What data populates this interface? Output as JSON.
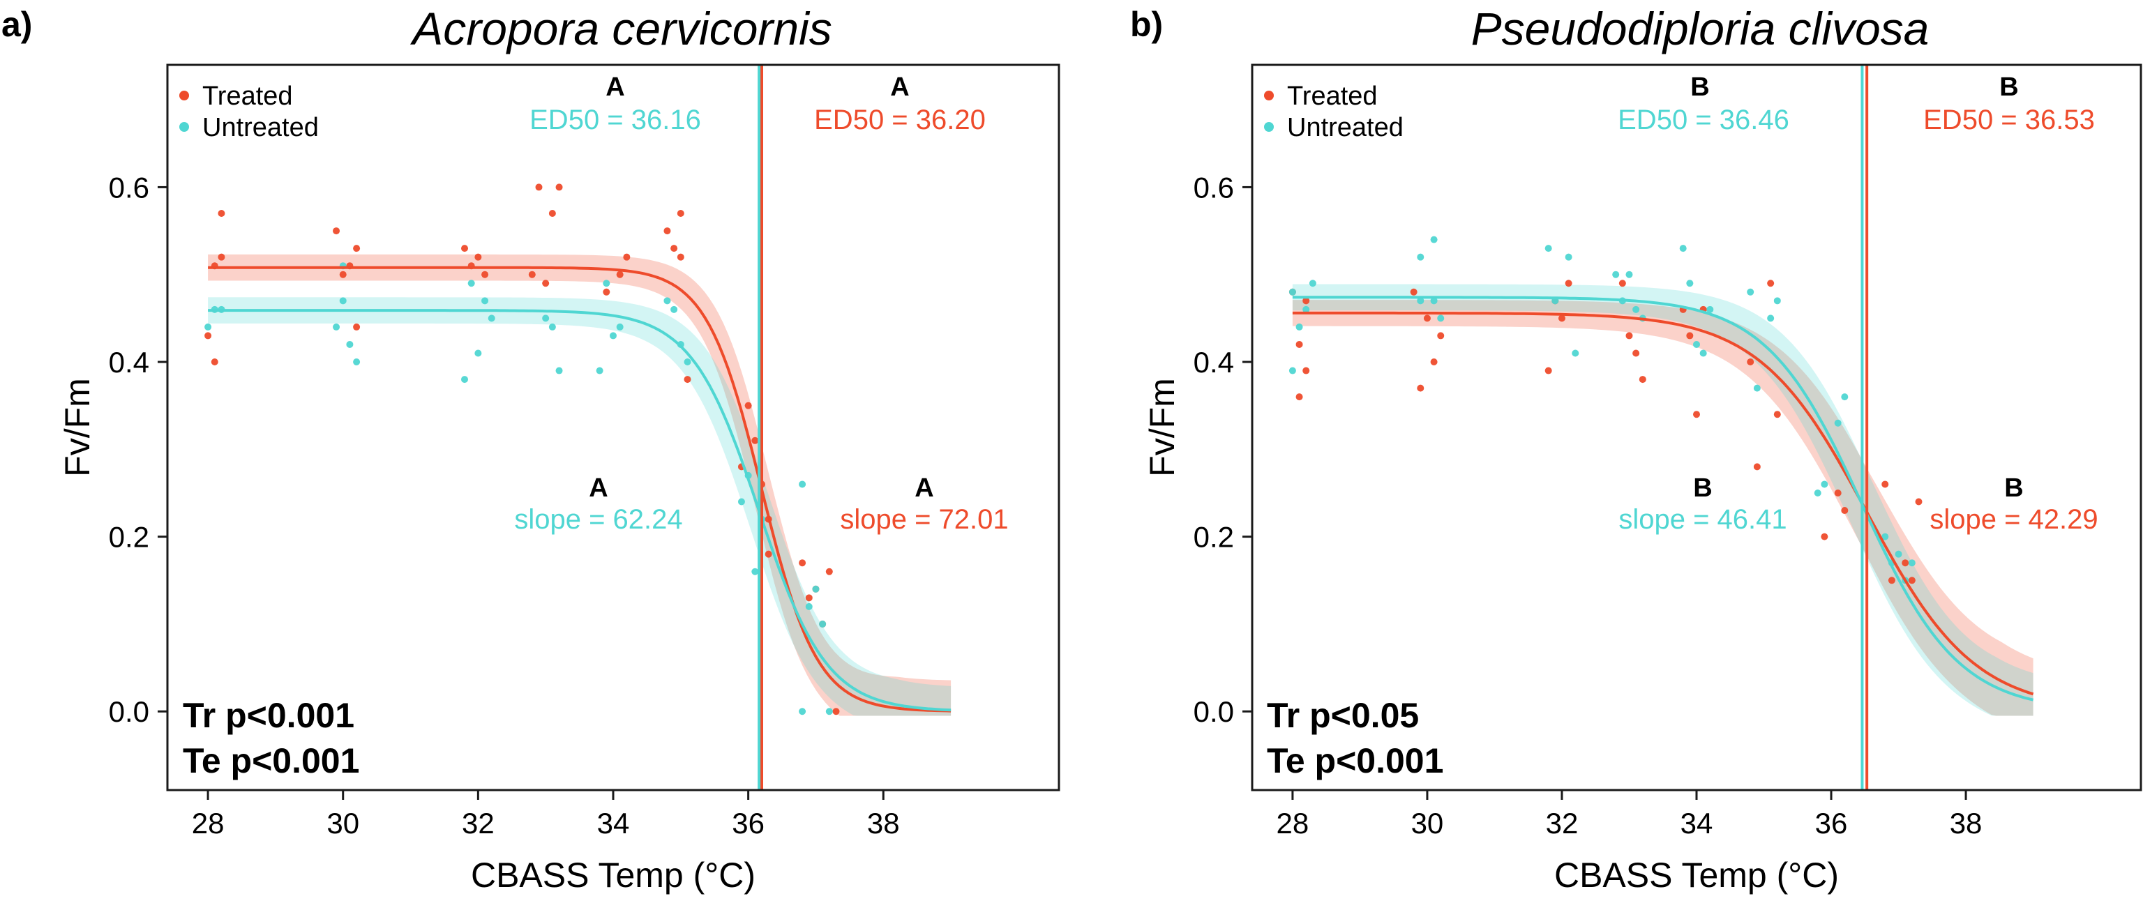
{
  "chart_data": [
    {
      "type": "scatter",
      "panel_label": "a)",
      "title": "Acropora cervicornis",
      "xlabel": "CBASS Temp (°C)",
      "ylabel": "Fv/Fm",
      "xlim": [
        27.4,
        40.6
      ],
      "ylim": [
        -0.09,
        0.74
      ],
      "xticks": [
        28,
        30,
        32,
        34,
        36,
        38
      ],
      "yticks": [
        0.0,
        0.2,
        0.4,
        0.6
      ],
      "ytick_labels": [
        "0.0",
        "0.2",
        "0.4",
        "0.6"
      ],
      "legend": [
        {
          "label": "Treated",
          "color": "#EE4B2B"
        },
        {
          "label": "Untreated",
          "color": "#4FD6D2"
        }
      ],
      "legend_position": "top-left",
      "series": [
        {
          "name": "Treated",
          "color": "#EE4B2B",
          "fit": {
            "top": 0.508,
            "ed50": 36.2,
            "k": 2.45,
            "ci": 0.015,
            "xmin": 28,
            "xmax": 39
          },
          "ed50_line": 36.2,
          "points": [
            [
              28.0,
              0.43
            ],
            [
              28.1,
              0.51
            ],
            [
              28.1,
              0.4
            ],
            [
              28.2,
              0.57
            ],
            [
              28.2,
              0.52
            ],
            [
              29.9,
              0.55
            ],
            [
              30.0,
              0.5
            ],
            [
              30.1,
              0.51
            ],
            [
              30.2,
              0.53
            ],
            [
              30.2,
              0.44
            ],
            [
              31.8,
              0.53
            ],
            [
              31.9,
              0.51
            ],
            [
              32.0,
              0.52
            ],
            [
              32.1,
              0.5
            ],
            [
              32.8,
              0.5
            ],
            [
              32.9,
              0.6
            ],
            [
              33.0,
              0.49
            ],
            [
              33.1,
              0.57
            ],
            [
              33.2,
              0.6
            ],
            [
              33.9,
              0.48
            ],
            [
              34.1,
              0.5
            ],
            [
              34.2,
              0.52
            ],
            [
              34.8,
              0.55
            ],
            [
              34.9,
              0.53
            ],
            [
              35.0,
              0.57
            ],
            [
              35.0,
              0.52
            ],
            [
              35.1,
              0.38
            ],
            [
              35.9,
              0.28
            ],
            [
              36.0,
              0.35
            ],
            [
              36.1,
              0.31
            ],
            [
              36.2,
              0.26
            ],
            [
              36.3,
              0.22
            ],
            [
              36.3,
              0.18
            ],
            [
              36.8,
              0.17
            ],
            [
              36.9,
              0.13
            ],
            [
              37.0,
              0.14
            ],
            [
              37.1,
              0.1
            ],
            [
              37.2,
              0.16
            ],
            [
              37.3,
              0.0
            ]
          ]
        },
        {
          "name": "Untreated",
          "color": "#4FD6D2",
          "fit": {
            "top": 0.459,
            "ed50": 36.16,
            "k": 2.0,
            "ci": 0.015,
            "xmin": 28,
            "xmax": 39
          },
          "ed50_line": 36.16,
          "points": [
            [
              28.0,
              0.44
            ],
            [
              28.1,
              0.46
            ],
            [
              28.2,
              0.46
            ],
            [
              29.9,
              0.44
            ],
            [
              30.0,
              0.47
            ],
            [
              30.0,
              0.51
            ],
            [
              30.1,
              0.42
            ],
            [
              30.2,
              0.4
            ],
            [
              31.8,
              0.38
            ],
            [
              31.9,
              0.49
            ],
            [
              32.0,
              0.41
            ],
            [
              32.1,
              0.47
            ],
            [
              32.2,
              0.45
            ],
            [
              33.0,
              0.45
            ],
            [
              33.1,
              0.44
            ],
            [
              33.2,
              0.39
            ],
            [
              33.8,
              0.39
            ],
            [
              33.9,
              0.49
            ],
            [
              34.0,
              0.43
            ],
            [
              34.1,
              0.44
            ],
            [
              34.8,
              0.47
            ],
            [
              34.9,
              0.46
            ],
            [
              35.0,
              0.42
            ],
            [
              35.1,
              0.4
            ],
            [
              35.9,
              0.24
            ],
            [
              36.0,
              0.27
            ],
            [
              36.1,
              0.16
            ],
            [
              36.2,
              0.22
            ],
            [
              36.8,
              0.26
            ],
            [
              36.8,
              0.0
            ],
            [
              36.9,
              0.12
            ],
            [
              37.0,
              0.14
            ],
            [
              37.1,
              0.1
            ],
            [
              37.2,
              0.0
            ]
          ]
        }
      ],
      "annotations": {
        "ed50_untreated": {
          "group": "A",
          "text": "ED50 = 36.16",
          "color": "#4FD6D2"
        },
        "ed50_treated": {
          "group": "A",
          "text": "ED50 = 36.20",
          "color": "#EE4B2B"
        },
        "slope_untreated": {
          "group": "A",
          "text": "slope = 62.24",
          "color": "#4FD6D2"
        },
        "slope_treated": {
          "group": "A",
          "text": "slope = 72.01",
          "color": "#EE4B2B"
        }
      },
      "stats": [
        "Tr p<0.001",
        "Te p<0.001"
      ]
    },
    {
      "type": "scatter",
      "panel_label": "b)",
      "title": "Pseudodiploria clivosa",
      "xlabel": "CBASS Temp (°C)",
      "ylabel": "Fv/Fm",
      "xlim": [
        27.4,
        40.6
      ],
      "ylim": [
        -0.09,
        0.74
      ],
      "xticks": [
        28,
        30,
        32,
        34,
        36,
        38
      ],
      "yticks": [
        0.0,
        0.2,
        0.4,
        0.6
      ],
      "ytick_labels": [
        "0.0",
        "0.2",
        "0.4",
        "0.6"
      ],
      "legend": [
        {
          "label": "Treated",
          "color": "#EE4B2B"
        },
        {
          "label": "Untreated",
          "color": "#4FD6D2"
        }
      ],
      "legend_position": "top-left",
      "series": [
        {
          "name": "Treated",
          "color": "#EE4B2B",
          "fit": {
            "top": 0.456,
            "ed50": 36.53,
            "k": 1.25,
            "ci": 0.015,
            "xmin": 28,
            "xmax": 39
          },
          "ed50_line": 36.53,
          "points": [
            [
              28.0,
              0.48
            ],
            [
              28.1,
              0.42
            ],
            [
              28.1,
              0.36
            ],
            [
              28.2,
              0.39
            ],
            [
              28.2,
              0.47
            ],
            [
              29.8,
              0.48
            ],
            [
              29.9,
              0.37
            ],
            [
              30.0,
              0.45
            ],
            [
              30.1,
              0.4
            ],
            [
              30.2,
              0.43
            ],
            [
              31.8,
              0.39
            ],
            [
              31.9,
              0.47
            ],
            [
              32.0,
              0.45
            ],
            [
              32.1,
              0.49
            ],
            [
              32.9,
              0.49
            ],
            [
              33.0,
              0.43
            ],
            [
              33.1,
              0.41
            ],
            [
              33.2,
              0.38
            ],
            [
              33.8,
              0.46
            ],
            [
              33.9,
              0.43
            ],
            [
              34.0,
              0.34
            ],
            [
              34.1,
              0.46
            ],
            [
              34.8,
              0.4
            ],
            [
              34.9,
              0.28
            ],
            [
              35.1,
              0.49
            ],
            [
              35.2,
              0.34
            ],
            [
              35.9,
              0.2
            ],
            [
              36.1,
              0.25
            ],
            [
              36.2,
              0.23
            ],
            [
              36.8,
              0.26
            ],
            [
              36.9,
              0.15
            ],
            [
              37.1,
              0.17
            ],
            [
              37.3,
              0.24
            ],
            [
              37.2,
              0.15
            ]
          ]
        },
        {
          "name": "Untreated",
          "color": "#4FD6D2",
          "fit": {
            "top": 0.474,
            "ed50": 36.46,
            "k": 1.4,
            "ci": 0.015,
            "xmin": 28,
            "xmax": 39
          },
          "ed50_line": 36.46,
          "points": [
            [
              28.0,
              0.48
            ],
            [
              28.0,
              0.39
            ],
            [
              28.1,
              0.44
            ],
            [
              28.2,
              0.46
            ],
            [
              28.3,
              0.49
            ],
            [
              29.9,
              0.52
            ],
            [
              29.9,
              0.47
            ],
            [
              30.1,
              0.54
            ],
            [
              30.1,
              0.47
            ],
            [
              30.2,
              0.45
            ],
            [
              31.8,
              0.53
            ],
            [
              31.9,
              0.47
            ],
            [
              32.1,
              0.52
            ],
            [
              32.2,
              0.41
            ],
            [
              32.8,
              0.5
            ],
            [
              32.9,
              0.47
            ],
            [
              33.0,
              0.5
            ],
            [
              33.1,
              0.46
            ],
            [
              33.2,
              0.45
            ],
            [
              33.8,
              0.53
            ],
            [
              33.9,
              0.49
            ],
            [
              34.0,
              0.42
            ],
            [
              34.1,
              0.41
            ],
            [
              34.2,
              0.46
            ],
            [
              34.8,
              0.48
            ],
            [
              34.9,
              0.37
            ],
            [
              35.1,
              0.45
            ],
            [
              35.2,
              0.47
            ],
            [
              35.8,
              0.25
            ],
            [
              35.9,
              0.26
            ],
            [
              36.1,
              0.33
            ],
            [
              36.2,
              0.36
            ],
            [
              36.8,
              0.2
            ],
            [
              36.9,
              0.17
            ],
            [
              37.0,
              0.18
            ],
            [
              37.1,
              0.15
            ],
            [
              37.2,
              0.17
            ]
          ]
        }
      ],
      "annotations": {
        "ed50_untreated": {
          "group": "B",
          "text": "ED50 = 36.46",
          "color": "#4FD6D2"
        },
        "ed50_treated": {
          "group": "B",
          "text": "ED50 = 36.53",
          "color": "#EE4B2B"
        },
        "slope_untreated": {
          "group": "B",
          "text": "slope = 46.41",
          "color": "#4FD6D2"
        },
        "slope_treated": {
          "group": "B",
          "text": "slope = 42.29",
          "color": "#EE4B2B"
        }
      },
      "stats": [
        "Tr p<0.05",
        "Te p<0.001"
      ]
    }
  ]
}
